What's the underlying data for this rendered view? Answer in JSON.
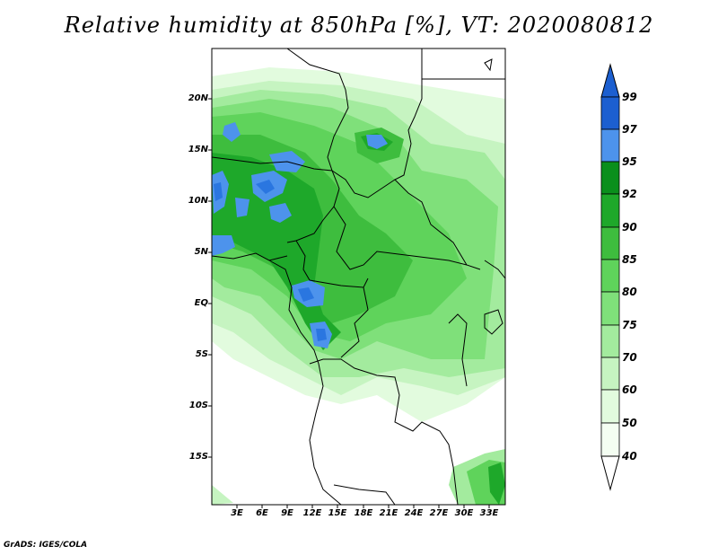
{
  "title": "Relative humidity at 850hPa [%], VT: 2020080812",
  "credit": "GrADS: IGES/COLA",
  "map": {
    "lat_labels": [
      "20N",
      "15N",
      "10N",
      "5N",
      "EQ",
      "5S",
      "10S",
      "15S"
    ],
    "lon_labels": [
      "3E",
      "6E",
      "9E",
      "12E",
      "15E",
      "18E",
      "21E",
      "24E",
      "27E",
      "30E",
      "33E"
    ]
  },
  "colorbar": {
    "levels": [
      "99",
      "97",
      "95",
      "92",
      "90",
      "85",
      "80",
      "75",
      "70",
      "60",
      "50",
      "40"
    ],
    "colors": [
      "#1c5fd0",
      "#2a76e0",
      "#4d93ec",
      "#0a8f1c",
      "#1ea82a",
      "#3ebd3e",
      "#5fd35b",
      "#7fe07a",
      "#a3eb9e",
      "#c6f4c1",
      "#e2fbde",
      "#ffffff"
    ]
  }
}
